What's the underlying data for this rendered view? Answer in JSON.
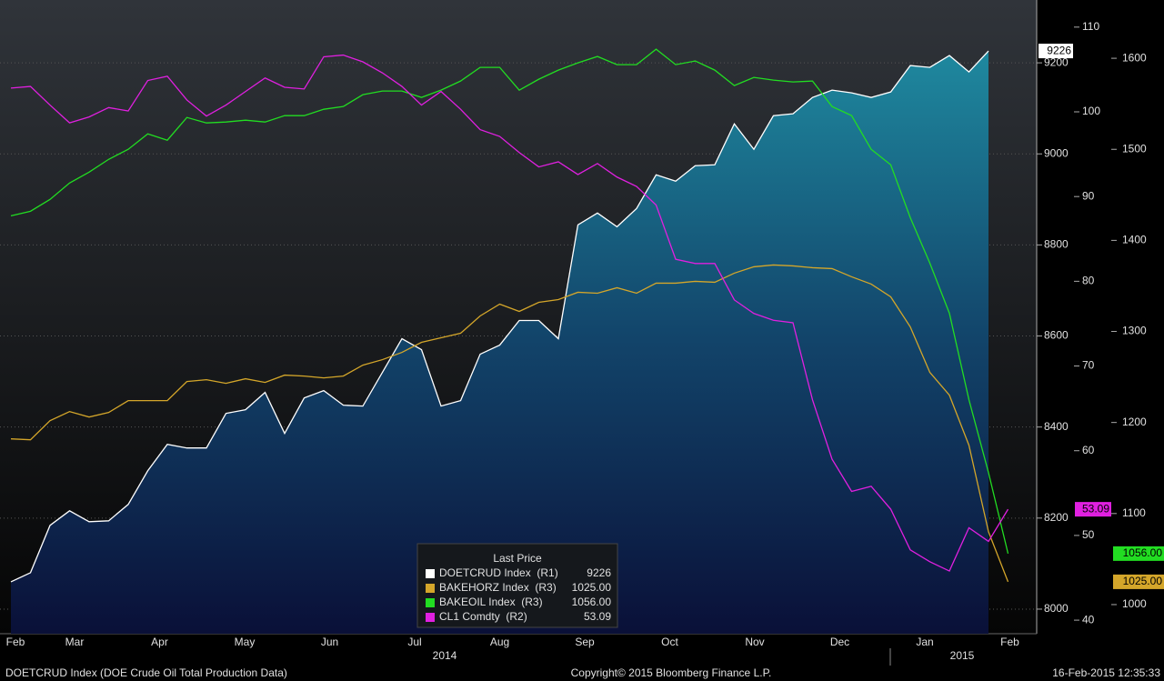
{
  "chart_data": {
    "type": "line",
    "x_labels": [
      "Feb",
      "Mar",
      "Apr",
      "May",
      "Jun",
      "Jul",
      "Aug",
      "Sep",
      "Oct",
      "Nov",
      "Dec",
      "Jan",
      "Feb"
    ],
    "year_labels": [
      "2014",
      "2015"
    ],
    "legend_title": "Last Price",
    "footer_left": "DOETCRUD Index (DOE Crude Oil Total Production Data)",
    "footer_center": "Copyright© 2015 Bloomberg Finance L.P.",
    "footer_right": "16-Feb-2015 12:35:33",
    "ylim": [
      7946,
      9338
    ],
    "yticks": [
      8000,
      8200,
      8400,
      8600,
      8800,
      9000,
      9200
    ],
    "y2lim": [
      38.4,
      113.2
    ],
    "y2ticks": [
      40,
      50,
      60,
      70,
      80,
      90,
      100,
      110
    ],
    "y3lim": [
      968,
      1664
    ],
    "y3ticks": [
      1000,
      1100,
      1200,
      1300,
      1400,
      1500,
      1600
    ],
    "grid": true,
    "series": [
      {
        "name": "DOETCRUD Index  (R1)",
        "color": "#ffffff",
        "axis": "y",
        "area": true,
        "values": [
          8060,
          8080,
          8184,
          8216,
          8192,
          8194,
          8230,
          8304,
          8362,
          8354,
          8354,
          8430,
          8438,
          8476,
          8386,
          8464,
          8480,
          8448,
          8446,
          8520,
          8594,
          8570,
          8446,
          8458,
          8560,
          8580,
          8634,
          8634,
          8594,
          8844,
          8870,
          8840,
          8880,
          8954,
          8940,
          8974,
          8976,
          9066,
          9010,
          9084,
          9088,
          9124,
          9140,
          9134,
          9124,
          9136,
          9194,
          9190,
          9216,
          9180,
          9226,
          null
        ]
      },
      {
        "name": "BAKEHORZ Index  (R3)",
        "color": "#d4a62a",
        "axis": "y3",
        "last_label": "1025.00",
        "values": [
          1182,
          1181,
          1202,
          1212,
          1206,
          1211,
          1224,
          1224,
          1224,
          1245,
          1247,
          1243,
          1248,
          1244,
          1252,
          1251,
          1249,
          1251,
          1263,
          1269,
          1277,
          1288,
          1293,
          1298,
          1317,
          1330,
          1322,
          1332,
          1335,
          1343,
          1342,
          1348,
          1342,
          1353,
          1353,
          1355,
          1354,
          1364,
          1371,
          1373,
          1372,
          1370,
          1369,
          1360,
          1352,
          1338,
          1305,
          1255,
          1230,
          1175,
          1080,
          1025
        ]
      },
      {
        "name": "BAKEOIL Index  (R3)",
        "color": "#22dd22",
        "axis": "y3",
        "last_label": "1056.00",
        "values": [
          1427,
          1432,
          1445,
          1463,
          1475,
          1489,
          1500,
          1517,
          1510,
          1535,
          1529,
          1530,
          1532,
          1530,
          1537,
          1537,
          1544,
          1547,
          1560,
          1564,
          1564,
          1557,
          1565,
          1575,
          1590,
          1590,
          1565,
          1577,
          1587,
          1595,
          1602,
          1593,
          1593,
          1610,
          1593,
          1597,
          1587,
          1570,
          1579,
          1576,
          1574,
          1575,
          1547,
          1537,
          1500,
          1483,
          1425,
          1375,
          1320,
          1225,
          1145,
          1056
        ]
      },
      {
        "name": "CL1 Comdty  (R2)",
        "color": "#e020e0",
        "axis": "y2",
        "values": [
          102.8,
          103.0,
          100.8,
          98.7,
          99.4,
          100.5,
          100.1,
          103.7,
          104.2,
          101.4,
          99.5,
          100.8,
          102.4,
          104.0,
          102.9,
          102.7,
          106.5,
          106.7,
          105.9,
          104.6,
          103.0,
          100.8,
          102.4,
          100.3,
          97.9,
          97.1,
          95.2,
          93.5,
          94.1,
          92.6,
          93.9,
          92.3,
          91.2,
          89.0,
          82.6,
          82.1,
          82.1,
          77.8,
          76.2,
          75.4,
          75.1,
          66.0,
          59.0,
          55.2,
          55.8,
          53.1,
          48.3,
          46.9,
          45.8,
          50.9,
          49.3,
          53.09
        ]
      }
    ]
  }
}
